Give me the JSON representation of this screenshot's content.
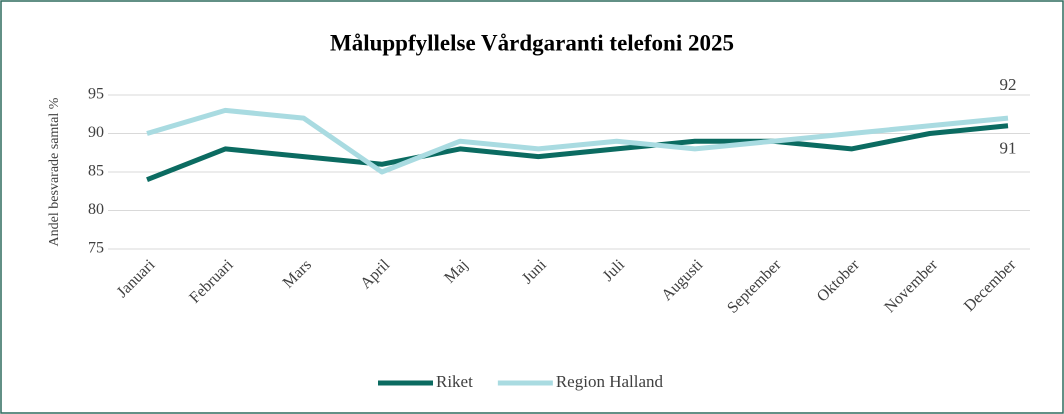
{
  "chart_data": {
    "type": "line",
    "title": "Måluppfyllelse Vårdgaranti telefoni 2025",
    "ylabel": "Andel besvarade samtal %",
    "categories": [
      "Januari",
      "Februari",
      "Mars",
      "April",
      "Maj",
      "Juni",
      "Juli",
      "Augusti",
      "September",
      "Oktober",
      "November",
      "December"
    ],
    "series": [
      {
        "name": "Riket",
        "color": "#0b6b61",
        "values": [
          84,
          88,
          87,
          86,
          88,
          87,
          88,
          89,
          89,
          88,
          90,
          91
        ]
      },
      {
        "name": "Region Halland",
        "color": "#a9dbe1",
        "values": [
          90,
          93,
          92,
          85,
          89,
          88,
          89,
          88,
          89,
          90,
          91,
          92
        ]
      }
    ],
    "ylim": [
      75,
      95
    ],
    "yticks": [
      75,
      80,
      85,
      90,
      95
    ],
    "grid": true,
    "legend": "bottom"
  }
}
